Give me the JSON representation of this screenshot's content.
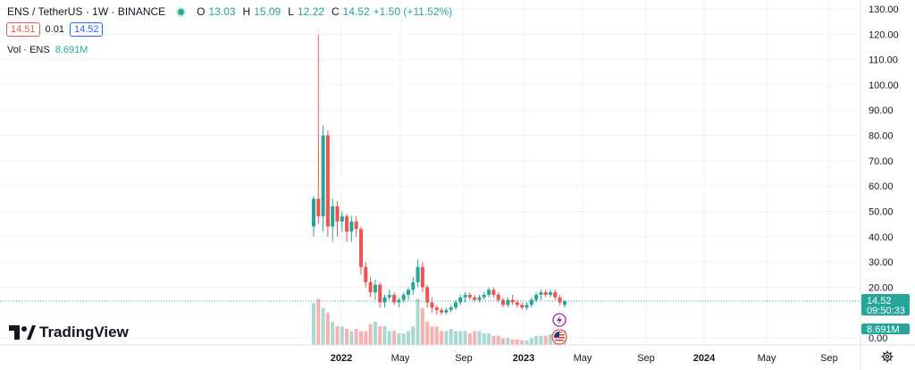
{
  "legend": {
    "symbol": "ENS / TetherUS · 1W · BINANCE",
    "open_label": "O",
    "open": "13.03",
    "high_label": "H",
    "high": "15.09",
    "low_label": "L",
    "low": "12.22",
    "close_label": "C",
    "close": "14.52",
    "change": "+1.50 (+11.52%)"
  },
  "quote": {
    "bid": "14.51",
    "spread": "0.01",
    "ask": "14.52"
  },
  "volume_legend": {
    "label": "Vol · ENS",
    "value": "8.691M"
  },
  "price_tag": {
    "price": "14.52",
    "countdown": "09:50:33"
  },
  "volume_tag": "8.691M",
  "brand": "TradingView",
  "colors": {
    "up": "#26a69a",
    "down": "#ef5350",
    "up_vol": "#a8d9d3",
    "down_vol": "#f7b2b0",
    "tag": "#26a69a",
    "grid": "#f0f3fa"
  },
  "icons": {
    "event_flash": "lightning-icon",
    "event_flag": "us-flag-icon",
    "settings": "gear-icon",
    "logo": "tradingview-logo-icon"
  },
  "chart_data": {
    "type": "candlestick",
    "interval": "1W",
    "y_axis": {
      "ticks": [
        "130.00",
        "120.00",
        "110.00",
        "100.00",
        "90.00",
        "80.00",
        "70.00",
        "60.00",
        "50.00",
        "40.00",
        "30.00",
        "20.00",
        "0.00"
      ],
      "range": [
        0,
        130
      ]
    },
    "x_axis": {
      "labels": [
        "2022",
        "May",
        "Sep",
        "2023",
        "May",
        "Sep",
        "2024",
        "May",
        "Sep"
      ],
      "bold": [
        "2022",
        "2023",
        "2024"
      ]
    },
    "grid": true,
    "last_price_line": 14.52,
    "candles": [
      [
        44,
        56,
        40,
        55
      ],
      [
        55,
        120,
        45,
        48
      ],
      [
        48,
        84,
        42,
        80
      ],
      [
        80,
        82,
        40,
        44
      ],
      [
        44,
        55,
        38,
        52
      ],
      [
        52,
        54,
        40,
        46
      ],
      [
        46,
        50,
        42,
        48
      ],
      [
        48,
        49,
        38,
        42
      ],
      [
        42,
        48,
        38,
        46
      ],
      [
        46,
        48,
        40,
        43
      ],
      [
        43,
        44,
        25,
        28
      ],
      [
        28,
        30,
        20,
        22
      ],
      [
        22,
        24,
        16,
        18
      ],
      [
        18,
        23,
        15,
        21
      ],
      [
        21,
        22,
        12,
        14
      ],
      [
        14,
        17,
        12,
        16
      ],
      [
        16,
        19,
        15,
        17
      ],
      [
        17,
        18,
        13,
        14
      ],
      [
        14,
        16,
        12,
        15
      ],
      [
        15,
        18,
        14,
        17
      ],
      [
        17,
        20,
        15,
        19
      ],
      [
        19,
        24,
        17,
        22
      ],
      [
        22,
        31,
        20,
        28
      ],
      [
        28,
        30,
        18,
        20
      ],
      [
        20,
        21,
        12,
        14
      ],
      [
        14,
        16,
        10,
        12
      ],
      [
        12,
        13,
        9,
        11
      ],
      [
        11,
        12,
        9,
        10
      ],
      [
        10,
        12,
        9,
        11
      ],
      [
        11,
        13,
        10,
        12
      ],
      [
        12,
        15,
        11,
        14
      ],
      [
        14,
        17,
        13,
        16
      ],
      [
        16,
        18,
        14,
        17
      ],
      [
        17,
        18,
        15,
        16
      ],
      [
        16,
        17,
        14,
        15
      ],
      [
        15,
        17,
        14,
        16
      ],
      [
        16,
        18,
        15,
        17
      ],
      [
        17,
        20,
        16,
        19
      ],
      [
        19,
        20,
        16,
        17
      ],
      [
        17,
        18,
        14,
        15
      ],
      [
        15,
        16,
        12,
        13
      ],
      [
        13,
        16,
        12,
        15
      ],
      [
        15,
        17,
        13,
        14
      ],
      [
        14,
        15,
        12,
        13
      ],
      [
        13,
        14,
        11,
        12
      ],
      [
        12,
        14,
        11,
        13
      ],
      [
        13,
        16,
        12,
        15
      ],
      [
        15,
        18,
        14,
        17
      ],
      [
        17,
        19,
        15,
        18
      ],
      [
        18,
        19,
        16,
        17
      ],
      [
        17,
        19,
        16,
        18
      ],
      [
        18,
        19,
        15,
        16
      ],
      [
        16,
        17,
        13,
        14
      ],
      [
        13,
        15,
        12,
        14.52
      ]
    ],
    "volumes": [
      9,
      10,
      8,
      7,
      5,
      4,
      4,
      3.5,
      3,
      3.5,
      3,
      3,
      4.5,
      5,
      4,
      4,
      3,
      3,
      2.5,
      2.5,
      3,
      4,
      10,
      8,
      5,
      4,
      4,
      3,
      3,
      3.5,
      3,
      3,
      3,
      2.5,
      3,
      3,
      2.5,
      2.5,
      2,
      2,
      1.5,
      1.5,
      1.2,
      1.2,
      1,
      1,
      1.5,
      2,
      2,
      2,
      2.3,
      2.6,
      3,
      3.2
    ],
    "volume_range": [
      0,
      40
    ]
  }
}
